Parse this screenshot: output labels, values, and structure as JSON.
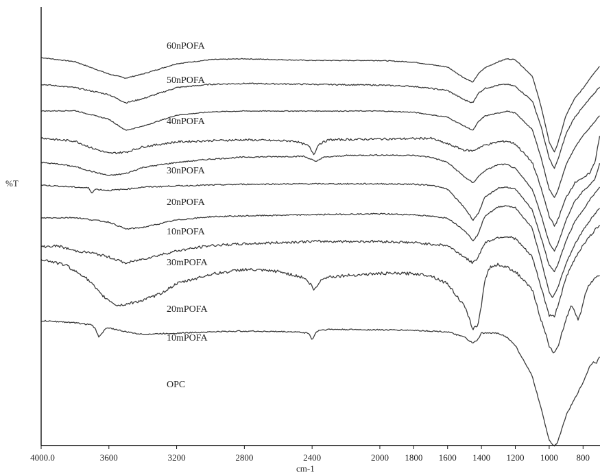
{
  "chart_data": {
    "type": "line",
    "title": "",
    "xlabel": "cm-1",
    "ylabel": "%T",
    "xlim": [
      4000,
      700
    ],
    "x_reversed": true,
    "x_ticks": [
      "4000.0",
      "3600",
      "3200",
      "2800",
      "2400",
      "2000",
      "1800",
      "1600",
      "1400",
      "1200",
      "1000",
      "800"
    ],
    "x_tick_values": [
      4000,
      3600,
      3200,
      2800,
      2400,
      2000,
      1800,
      1600,
      1400,
      1200,
      1000,
      800
    ],
    "y_ticks": false,
    "grid": false,
    "line_color": "#3a3a3a",
    "note": "Stacked (offset) FTIR transmittance spectra; y values are relative transmittance in arbitrary units on a 0-100 scale.",
    "series": [
      {
        "name": "60nPOFA",
        "noise": 0.2,
        "x": [
          4000,
          3800,
          3600,
          3500,
          3400,
          3200,
          3000,
          2800,
          2400,
          2000,
          1800,
          1600,
          1500,
          1450,
          1420,
          1380,
          1300,
          1250,
          1200,
          1100,
          1050,
          1000,
          970,
          950,
          900,
          850,
          800,
          750,
          700
        ],
        "y": [
          93.5,
          92.5,
          89.5,
          88.5,
          89.5,
          92.0,
          93.0,
          93.2,
          92.8,
          92.8,
          92.4,
          91.2,
          88.5,
          87.5,
          89.5,
          91.0,
          92.5,
          93.2,
          93.0,
          89.0,
          82.0,
          73.0,
          70.5,
          72.5,
          79.5,
          83.5,
          86.0,
          89.0,
          91.5
        ]
      },
      {
        "name": "50nPOFA",
        "noise": 0.3,
        "x": [
          4000,
          3800,
          3600,
          3500,
          3400,
          3200,
          3000,
          2800,
          2400,
          2000,
          1800,
          1600,
          1500,
          1450,
          1420,
          1380,
          1300,
          1250,
          1200,
          1100,
          1050,
          1000,
          970,
          950,
          900,
          850,
          800,
          750,
          700
        ],
        "y": [
          87.0,
          86.2,
          84.5,
          82.5,
          83.5,
          86.2,
          87.0,
          87.2,
          87.0,
          86.8,
          86.5,
          85.5,
          83.2,
          82.5,
          84.8,
          86.0,
          86.8,
          87.0,
          86.5,
          83.0,
          77.0,
          69.0,
          66.5,
          68.5,
          75.0,
          79.0,
          81.5,
          84.0,
          86.5
        ]
      },
      {
        "name": "40nPOFA",
        "noise": 0.2,
        "x": [
          4000,
          3800,
          3600,
          3500,
          3400,
          3200,
          3000,
          2800,
          2400,
          2000,
          1800,
          1600,
          1500,
          1450,
          1420,
          1380,
          1300,
          1250,
          1200,
          1100,
          1050,
          1000,
          970,
          950,
          900,
          850,
          800,
          750,
          700
        ],
        "y": [
          80.5,
          80.6,
          78.5,
          75.8,
          76.8,
          79.5,
          80.3,
          80.5,
          80.5,
          80.5,
          80.2,
          79.0,
          76.8,
          75.8,
          77.8,
          79.3,
          80.0,
          80.5,
          80.0,
          76.0,
          69.5,
          61.5,
          59.5,
          61.0,
          67.5,
          71.5,
          74.5,
          77.0,
          79.5
        ]
      },
      {
        "name": "30nPOFA",
        "noise": 0.5,
        "x": [
          4000,
          3900,
          3800,
          3700,
          3600,
          3500,
          3400,
          3200,
          3000,
          2800,
          2500,
          2420,
          2390,
          2360,
          2300,
          2000,
          1800,
          1700,
          1600,
          1500,
          1450,
          1420,
          1380,
          1300,
          1250,
          1200,
          1100,
          1050,
          1000,
          970,
          950,
          900,
          850,
          820,
          800,
          760,
          730,
          700
        ],
        "y": [
          74.0,
          73.5,
          73.2,
          71.5,
          70.2,
          70.5,
          71.8,
          73.0,
          73.3,
          73.5,
          73.2,
          72.0,
          70.0,
          72.5,
          73.5,
          73.7,
          73.8,
          73.9,
          72.5,
          71.0,
          70.8,
          71.5,
          72.2,
          73.0,
          73.2,
          72.5,
          68.0,
          62.0,
          55.0,
          52.5,
          54.0,
          59.5,
          63.0,
          64.0,
          64.0,
          65.5,
          68.0,
          75.0
        ]
      },
      {
        "name": "20nPOFA",
        "noise": 0.3,
        "x": [
          4000,
          3900,
          3800,
          3700,
          3600,
          3500,
          3400,
          3200,
          3000,
          2800,
          2450,
          2400,
          2380,
          2340,
          2200,
          2000,
          1800,
          1700,
          1600,
          1500,
          1450,
          1420,
          1380,
          1300,
          1250,
          1200,
          1100,
          1050,
          1000,
          970,
          950,
          900,
          850,
          800,
          760,
          730,
          700
        ],
        "y": [
          68.0,
          67.6,
          67.0,
          65.8,
          64.8,
          65.3,
          66.8,
          68.0,
          68.8,
          69.3,
          69.5,
          68.7,
          68.1,
          69.2,
          69.7,
          69.8,
          69.7,
          69.3,
          68.0,
          64.5,
          63.0,
          64.5,
          66.0,
          67.5,
          67.5,
          66.5,
          61.5,
          55.5,
          48.5,
          46.5,
          48.0,
          54.0,
          58.5,
          61.0,
          62.5,
          64.0,
          68.0
        ]
      },
      {
        "name": "10nPOFA",
        "noise": 0.3,
        "x": [
          4000,
          3800,
          3720,
          3700,
          3680,
          3600,
          3500,
          3400,
          3200,
          3000,
          2800,
          2400,
          2000,
          1800,
          1700,
          1600,
          1500,
          1450,
          1420,
          1380,
          1300,
          1250,
          1200,
          1100,
          1050,
          1000,
          970,
          950,
          900,
          850,
          800,
          750,
          700
        ],
        "y": [
          62.5,
          62.0,
          61.8,
          60.6,
          61.5,
          61.2,
          61.5,
          62.0,
          62.3,
          62.5,
          62.7,
          62.8,
          62.8,
          62.7,
          62.5,
          61.5,
          57.0,
          54.0,
          55.5,
          59.5,
          61.8,
          62.0,
          61.5,
          56.5,
          50.0,
          43.0,
          41.5,
          43.0,
          49.0,
          53.5,
          56.5,
          59.5,
          62.0
        ]
      },
      {
        "name": "30mPOFA",
        "noise": 0.3,
        "x": [
          4000,
          3800,
          3600,
          3500,
          3400,
          3200,
          3000,
          2800,
          2400,
          2000,
          1800,
          1600,
          1500,
          1450,
          1420,
          1380,
          1300,
          1250,
          1200,
          1100,
          1050,
          1000,
          980,
          950,
          900,
          850,
          800,
          750,
          700
        ],
        "y": [
          54.5,
          54.6,
          53.5,
          51.8,
          52.2,
          54.0,
          54.8,
          55.0,
          55.3,
          55.5,
          55.3,
          54.5,
          51.5,
          49.0,
          50.5,
          55.0,
          57.2,
          57.5,
          57.0,
          52.0,
          44.5,
          36.5,
          35.0,
          37.5,
          43.5,
          48.0,
          51.5,
          54.5,
          57.0
        ]
      },
      {
        "name": "20mPOFA",
        "noise": 0.6,
        "x": [
          4000,
          3900,
          3800,
          3700,
          3600,
          3500,
          3400,
          3200,
          3000,
          2800,
          2400,
          2000,
          1800,
          1600,
          1500,
          1450,
          1420,
          1380,
          1300,
          1250,
          1200,
          1100,
          1050,
          1000,
          970,
          950,
          900,
          850,
          800,
          750,
          700
        ],
        "y": [
          47.5,
          47.7,
          46.5,
          46.0,
          45.0,
          43.5,
          44.5,
          46.5,
          47.8,
          48.2,
          48.8,
          48.8,
          48.5,
          47.8,
          45.0,
          43.5,
          45.0,
          48.5,
          49.8,
          50.0,
          49.5,
          45.0,
          38.0,
          30.8,
          30.5,
          33.0,
          40.0,
          44.5,
          48.0,
          50.5,
          53.0
        ]
      },
      {
        "name": "10mPOFA",
        "noise": 0.7,
        "x": [
          4000,
          3900,
          3850,
          3800,
          3750,
          3700,
          3650,
          3600,
          3550,
          3500,
          3400,
          3300,
          3200,
          3000,
          2800,
          2600,
          2450,
          2400,
          2390,
          2370,
          2340,
          2300,
          2200,
          2000,
          1800,
          1700,
          1600,
          1500,
          1450,
          1420,
          1400,
          1380,
          1350,
          1300,
          1250,
          1200,
          1100,
          1050,
          1000,
          970,
          950,
          900,
          870,
          850,
          830,
          800,
          780,
          760,
          740,
          720,
          700
        ],
        "y": [
          44.5,
          43.5,
          43.0,
          41.5,
          40.5,
          38.5,
          36.0,
          34.5,
          33.2,
          33.5,
          34.5,
          36.0,
          38.5,
          40.8,
          42.0,
          41.5,
          40.0,
          38.0,
          36.8,
          38.0,
          39.8,
          40.2,
          40.5,
          41.0,
          41.0,
          40.5,
          38.5,
          33.0,
          27.5,
          28.5,
          33.5,
          39.5,
          42.5,
          43.2,
          42.5,
          41.5,
          37.0,
          30.0,
          23.5,
          21.5,
          23.0,
          30.0,
          33.5,
          32.0,
          29.5,
          33.5,
          37.0,
          38.5,
          39.5,
          40.0,
          40.5
        ]
      },
      {
        "name": "OPC",
        "noise": 0.3,
        "x": [
          4000,
          3900,
          3800,
          3700,
          3680,
          3660,
          3620,
          3600,
          3500,
          3400,
          3200,
          3000,
          2800,
          2500,
          2420,
          2400,
          2380,
          2360,
          2300,
          2000,
          1800,
          1600,
          1500,
          1450,
          1420,
          1400,
          1300,
          1250,
          1200,
          1100,
          1050,
          1000,
          970,
          950,
          900,
          850,
          800,
          780,
          760,
          740,
          720,
          700
        ],
        "y": [
          29.5,
          29.3,
          29.0,
          28.5,
          27.5,
          25.6,
          27.5,
          27.8,
          26.8,
          26.2,
          26.5,
          26.8,
          27.0,
          26.8,
          26.5,
          24.8,
          26.5,
          27.2,
          27.4,
          27.3,
          27.2,
          26.8,
          25.5,
          24.0,
          25.0,
          26.5,
          26.5,
          25.5,
          23.5,
          16.0,
          8.5,
          0.5,
          -1.0,
          0.0,
          6.5,
          10.5,
          14.5,
          16.5,
          18.5,
          19.5,
          19.3,
          21.0
        ]
      }
    ]
  }
}
